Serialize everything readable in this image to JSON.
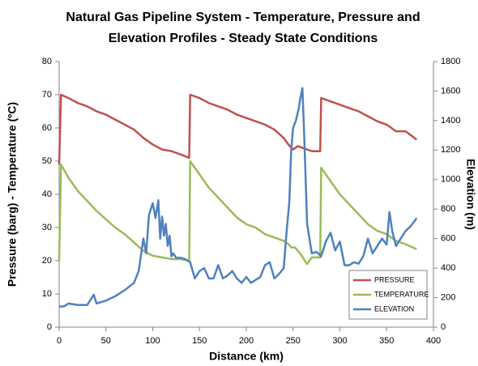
{
  "chart_data": {
    "type": "line",
    "title": [
      "Natural Gas Pipeline System - Temperature, Pressure and",
      "Elevation Profiles  - Steady State Conditions"
    ],
    "x_label": "Distance (km)",
    "y_label": "Pressure (barg) - Temperature (ºC)",
    "y2_label": "Elevation (m)",
    "xlim": [
      0,
      400
    ],
    "xticks": [
      0,
      50,
      100,
      150,
      200,
      250,
      300,
      350,
      400
    ],
    "ylim": [
      0,
      80
    ],
    "yticks": [
      0,
      10,
      20,
      30,
      40,
      50,
      60,
      70,
      80
    ],
    "y2lim": [
      0,
      1800
    ],
    "y2ticks": [
      0,
      200,
      400,
      600,
      800,
      1000,
      1200,
      1400,
      1600,
      1800
    ],
    "legend": "lower right",
    "grid": false,
    "series": [
      {
        "name": "PRESSURE",
        "color": "#c0504d",
        "x": [
          0,
          2,
          10,
          20,
          30,
          40,
          50,
          60,
          70,
          80,
          90,
          100,
          110,
          120,
          130,
          139,
          140,
          150,
          160,
          170,
          180,
          190,
          200,
          210,
          220,
          230,
          240,
          245,
          250,
          255,
          260,
          270,
          279,
          280,
          290,
          300,
          310,
          320,
          330,
          340,
          350,
          360,
          370,
          375,
          382
        ],
        "values": [
          49,
          70,
          69,
          67.5,
          66.5,
          65,
          64,
          62.5,
          61,
          59.5,
          57,
          55,
          53.5,
          53,
          52,
          51,
          70,
          69,
          67.5,
          66.5,
          65.5,
          64,
          63,
          62,
          61,
          59.5,
          57,
          55,
          53.5,
          54.5,
          54,
          53,
          53,
          69,
          68,
          67,
          66,
          65,
          63.5,
          62,
          61,
          59,
          59,
          58,
          56.5
        ]
      },
      {
        "name": "TEMPERATURE",
        "color": "#9bbb59",
        "x": [
          0,
          2,
          10,
          20,
          30,
          40,
          50,
          60,
          70,
          80,
          90,
          100,
          110,
          120,
          130,
          139,
          140,
          150,
          160,
          170,
          180,
          190,
          200,
          210,
          220,
          230,
          240,
          245,
          248,
          252,
          258,
          265,
          270,
          279,
          280,
          290,
          300,
          310,
          320,
          330,
          340,
          350,
          360,
          370,
          382
        ],
        "values": [
          20,
          49,
          45,
          41,
          38,
          35,
          32.5,
          30,
          28,
          25.5,
          23,
          21.5,
          21,
          20.5,
          20.5,
          20,
          50,
          46,
          42,
          39,
          36,
          33,
          31,
          30,
          28,
          27,
          26,
          25,
          24,
          24,
          22,
          19,
          21,
          21,
          48,
          44,
          40,
          37,
          34,
          31,
          29,
          28,
          26,
          25,
          23.5
        ]
      },
      {
        "name": "ELEVATION",
        "color": "#4f81bd",
        "axis": "y2",
        "x": [
          0,
          5,
          10,
          20,
          30,
          35,
          37,
          40,
          50,
          60,
          70,
          80,
          85,
          90,
          93,
          96,
          100,
          103,
          106,
          108,
          110,
          112,
          114,
          116,
          118,
          120,
          122,
          125,
          130,
          135,
          140,
          145,
          150,
          155,
          160,
          165,
          170,
          175,
          180,
          185,
          190,
          195,
          200,
          205,
          210,
          215,
          220,
          225,
          230,
          235,
          240,
          243,
          246,
          248,
          250,
          253,
          256,
          258,
          260,
          262,
          265,
          270,
          275,
          280,
          285,
          290,
          295,
          300,
          305,
          310,
          315,
          320,
          325,
          330,
          335,
          340,
          345,
          350,
          353,
          356,
          360,
          365,
          370,
          375,
          380,
          382
        ],
        "values": [
          140,
          140,
          160,
          150,
          150,
          200,
          220,
          160,
          180,
          210,
          250,
          300,
          380,
          600,
          500,
          760,
          840,
          740,
          860,
          600,
          750,
          620,
          700,
          550,
          620,
          480,
          500,
          470,
          470,
          460,
          440,
          330,
          380,
          400,
          330,
          330,
          420,
          330,
          350,
          380,
          330,
          300,
          340,
          300,
          320,
          340,
          420,
          440,
          330,
          360,
          400,
          640,
          850,
          1200,
          1350,
          1400,
          1480,
          1560,
          1620,
          1280,
          700,
          500,
          510,
          480,
          580,
          640,
          520,
          580,
          420,
          420,
          440,
          430,
          480,
          600,
          500,
          550,
          600,
          560,
          780,
          650,
          550,
          600,
          650,
          680,
          720,
          740
        ]
      }
    ]
  }
}
